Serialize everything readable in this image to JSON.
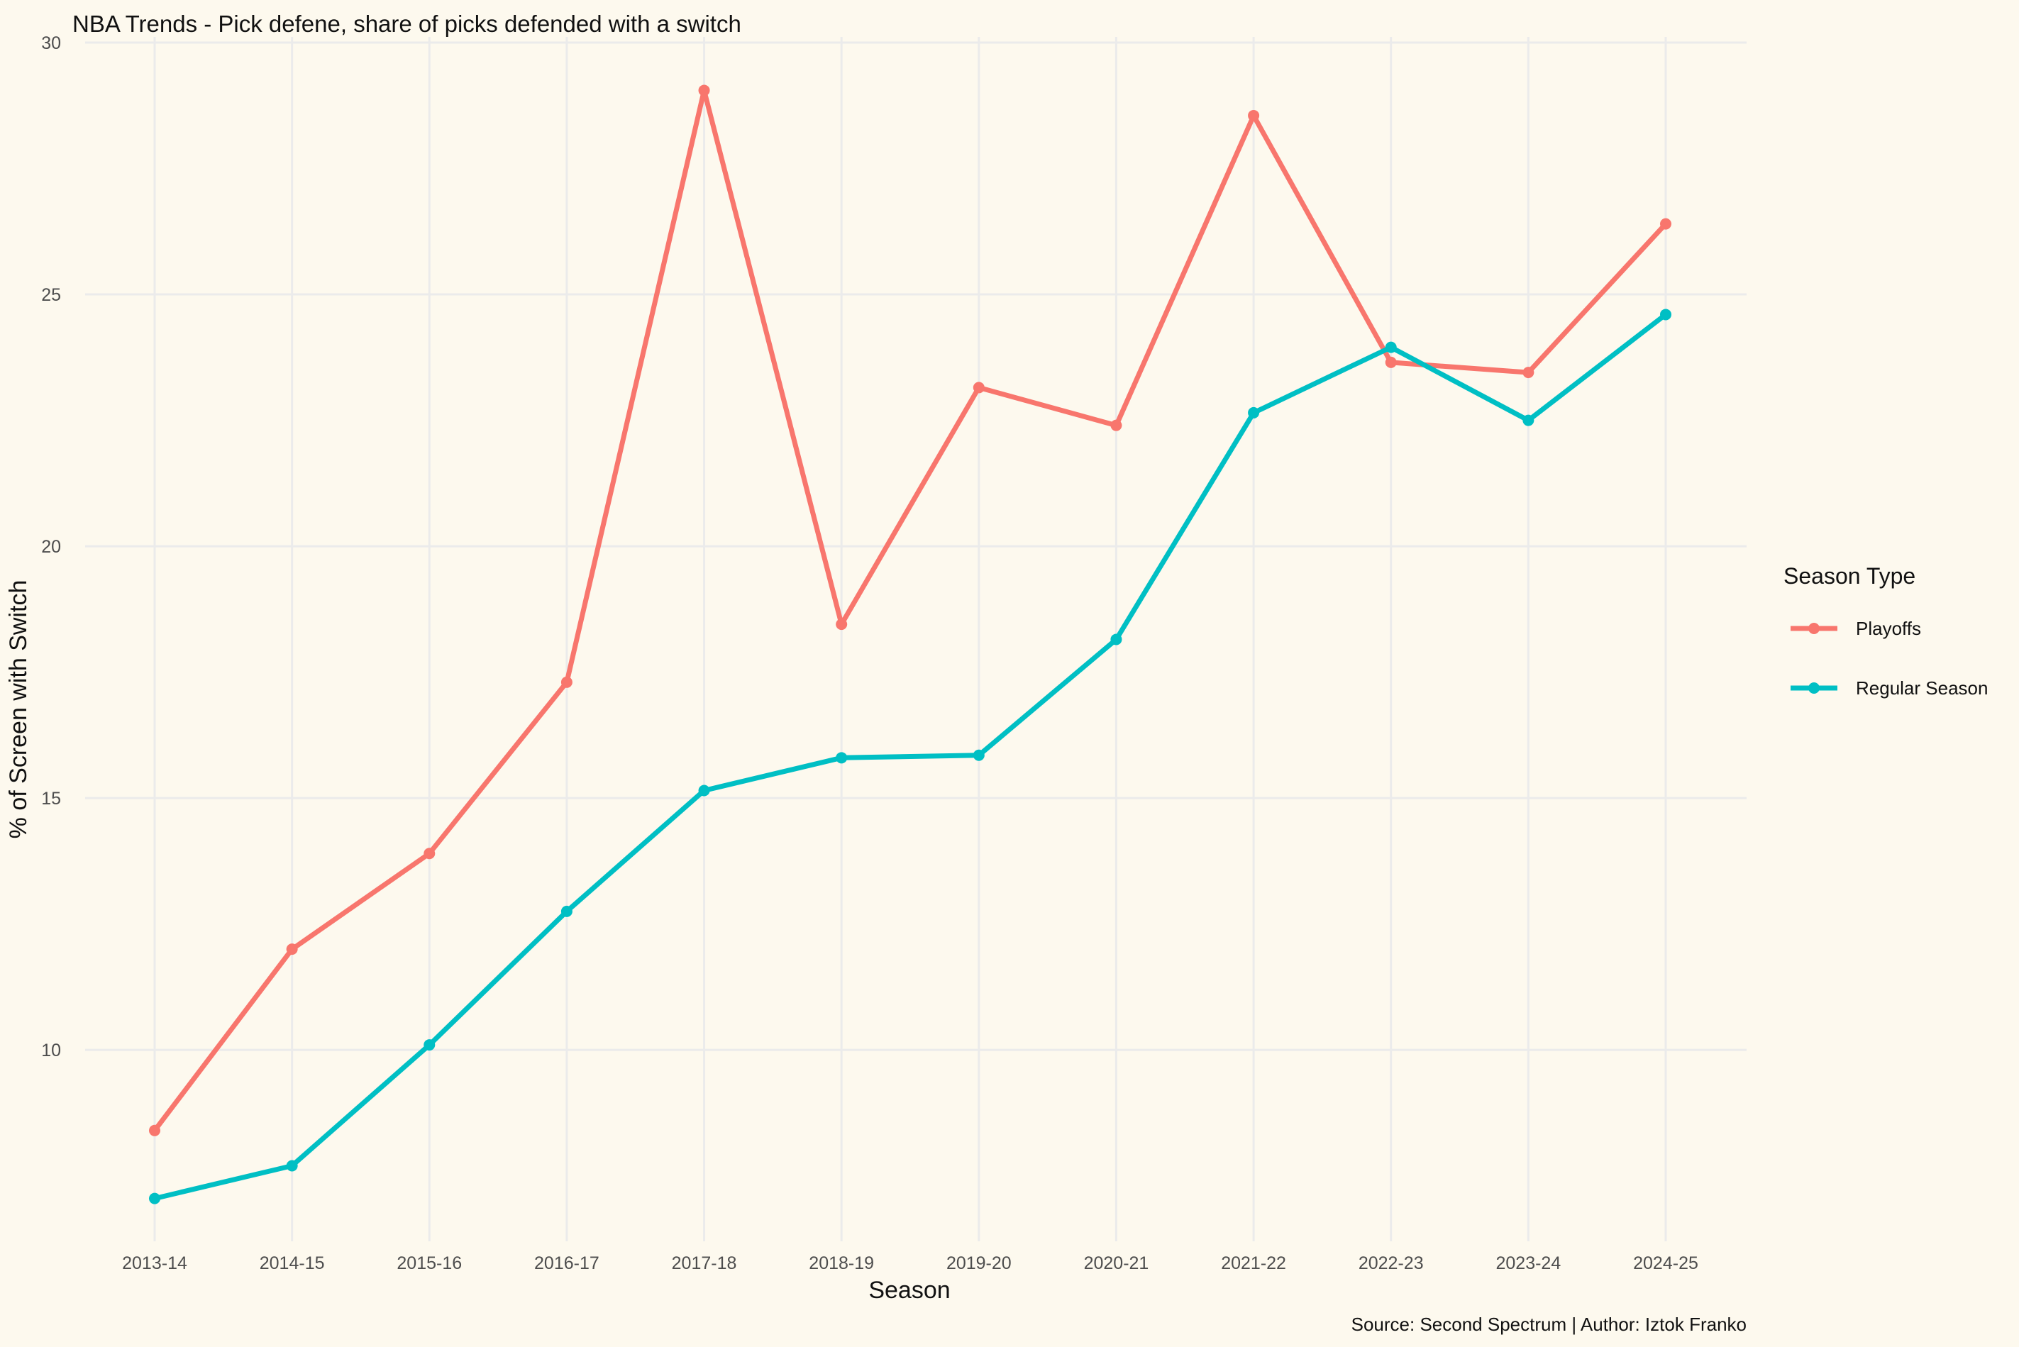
{
  "chart_data": {
    "type": "line",
    "title": "NBA Trends - Pick defene, share of picks defended with a switch",
    "xlabel": "Season",
    "ylabel": "% of Screen with Switch",
    "caption": "Source: Second Spectrum | Author: Iztok Franko",
    "categories": [
      "2013-14",
      "2014-15",
      "2015-16",
      "2016-17",
      "2017-18",
      "2018-19",
      "2019-20",
      "2020-21",
      "2021-22",
      "2022-23",
      "2023-24",
      "2024-25"
    ],
    "ylim": [
      6.2,
      30
    ],
    "yticks": [
      10,
      15,
      20,
      25,
      30
    ],
    "grid": true,
    "legend": {
      "title": "Season Type",
      "position": "right"
    },
    "series": [
      {
        "name": "Playoffs",
        "color": "#f8766d",
        "values": [
          8.4,
          12.0,
          13.9,
          17.3,
          29.05,
          18.45,
          23.15,
          22.4,
          28.55,
          23.65,
          23.45,
          26.4
        ]
      },
      {
        "name": "Regular Season",
        "color": "#00bfc4",
        "values": [
          7.05,
          7.7,
          10.1,
          12.75,
          15.15,
          15.8,
          15.85,
          18.15,
          22.65,
          23.95,
          22.5,
          24.6
        ]
      }
    ]
  }
}
